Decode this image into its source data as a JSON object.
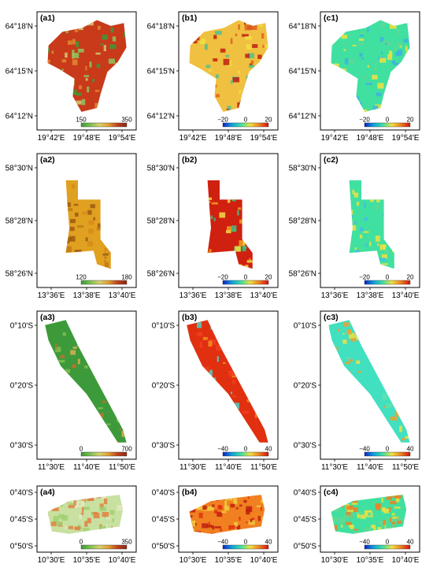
{
  "colormaps": {
    "elevation": [
      "#3d9a3a",
      "#7cc050",
      "#d8d070",
      "#e0a030",
      "#c04020",
      "#8a2a10"
    ],
    "rainbow": [
      "#1020c0",
      "#10a0e0",
      "#40e0a0",
      "#f0e040",
      "#f08020",
      "#d01010"
    ]
  },
  "rows": [
    {
      "x_ticks": [
        "19°42'E",
        "19°48'E",
        "19°54'E"
      ],
      "y_ticks": [
        "64°18'N",
        "64°15'N",
        "64°12'N"
      ],
      "panels": [
        {
          "label": "(a1)",
          "colorbar": {
            "cmap": "elevation",
            "min": "150",
            "max": "350"
          }
        },
        {
          "label": "(b1)",
          "colorbar": {
            "cmap": "rainbow",
            "min": "−20",
            "mid": "0",
            "max": "20"
          }
        },
        {
          "label": "(c1)",
          "colorbar": {
            "cmap": "rainbow",
            "min": "−20",
            "mid": "0",
            "max": "20"
          }
        }
      ]
    },
    {
      "x_ticks": [
        "13°36'E",
        "13°38'E",
        "13°40'E"
      ],
      "y_ticks": [
        "58°30'N",
        "58°28'N",
        "58°26'N"
      ],
      "panels": [
        {
          "label": "(a2)",
          "colorbar": {
            "cmap": "elevation",
            "min": "120",
            "max": "180"
          }
        },
        {
          "label": "(b2)",
          "colorbar": {
            "cmap": "rainbow",
            "min": "−20",
            "mid": "0",
            "max": "20"
          }
        },
        {
          "label": "(c2)",
          "colorbar": {
            "cmap": "rainbow",
            "min": "−20",
            "mid": "0",
            "max": "20"
          }
        }
      ]
    },
    {
      "x_ticks": [
        "11°30'E",
        "11°40'E",
        "11°50'E"
      ],
      "y_ticks": [
        "0°10'S",
        "0°20'S",
        "0°30'S"
      ],
      "panels": [
        {
          "label": "(a3)",
          "colorbar": {
            "cmap": "elevation",
            "min": "0",
            "max": "700"
          }
        },
        {
          "label": "(b3)",
          "colorbar": {
            "cmap": "rainbow",
            "min": "−40",
            "mid": "0",
            "max": "40"
          }
        },
        {
          "label": "(c3)",
          "colorbar": {
            "cmap": "rainbow",
            "min": "−40",
            "mid": "0",
            "max": "40"
          }
        }
      ]
    },
    {
      "x_ticks": [
        "10°30'E",
        "10°35'E",
        "10°40'E"
      ],
      "y_ticks": [
        "0°40'S",
        "0°45'S",
        "0°50'S"
      ],
      "panels": [
        {
          "label": "(a4)",
          "colorbar": {
            "cmap": "elevation",
            "min": "0",
            "max": "350"
          }
        },
        {
          "label": "(b4)",
          "colorbar": {
            "cmap": "rainbow",
            "min": "−40",
            "mid": "0",
            "max": "40"
          }
        },
        {
          "label": "(c4)",
          "colorbar": {
            "cmap": "rainbow",
            "min": "−40",
            "mid": "0",
            "max": "40"
          }
        }
      ]
    }
  ]
}
